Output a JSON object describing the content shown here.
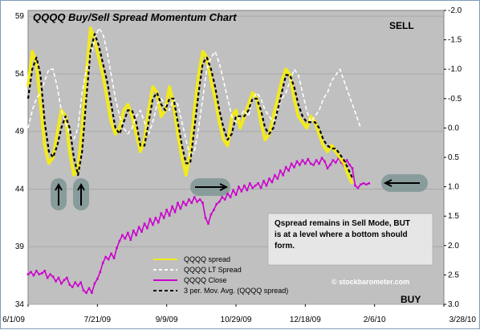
{
  "chart_data": {
    "type": "line",
    "title": "QQQQ Buy/Sell Spread Momentum Chart",
    "x_ticks": [
      "6/1/09",
      "7/21/09",
      "9/9/09",
      "10/29/09",
      "12/18/09",
      "2/6/10",
      "3/28/10"
    ],
    "x_range": [
      "6/1/09",
      "3/28/10"
    ],
    "y_left": {
      "ticks": [
        "59",
        "54",
        "49",
        "44",
        "39",
        "34"
      ],
      "range": [
        34,
        59.5
      ]
    },
    "y_right": {
      "ticks": [
        "-2.0",
        "-1.5",
        "-1.0",
        "-0.5",
        "0.0",
        "0.5",
        "1.0",
        "1.5",
        "2.0",
        "2.5",
        "3.0"
      ],
      "range": [
        -2.0,
        3.0
      ],
      "inverted": true
    },
    "grid": "horizontal",
    "plot_background": "#c0c0c0",
    "mode_labels": {
      "sell": "SELL",
      "buy": "BUY"
    },
    "legend": {
      "placement": "bottom-center",
      "entries": [
        {
          "label": "QQQQ spread",
          "color": "#f2ea1a",
          "style": "solid"
        },
        {
          "label": "QQQQ LT Spread",
          "color": "#ffffff",
          "style": "dashed"
        },
        {
          "label": "QQQQ Close",
          "color": "#cc00cc",
          "style": "solid"
        },
        {
          "label": "3 per. Mov. Avg. (QQQQ spread)",
          "color": "#000000",
          "style": "dashed"
        }
      ]
    },
    "annotations": {
      "note": [
        "Qspread remains in Sell Mode, BUT",
        "is at a level where a bottom should",
        "form."
      ],
      "credit": "© stockbarometer.com"
    },
    "series": [
      {
        "name": "QQQQ Close",
        "axis": "left",
        "color": "#cc00cc",
        "x": [
          0,
          2,
          4,
          6,
          8,
          10,
          12,
          14,
          16,
          18,
          20,
          22,
          24,
          26,
          28,
          30,
          32,
          34,
          36,
          38,
          40,
          42,
          44,
          46,
          48,
          50,
          52,
          54,
          56,
          58,
          60,
          62,
          64,
          66,
          68,
          70,
          72,
          74,
          76,
          78,
          80,
          82,
          84,
          86,
          88,
          90,
          92,
          94,
          96,
          98,
          100,
          102,
          104,
          106,
          108,
          110,
          112,
          114,
          116,
          118,
          120,
          122,
          124,
          126,
          128,
          130,
          132,
          134,
          136,
          138,
          140,
          142,
          144,
          146,
          148,
          150,
          152,
          154,
          156,
          158,
          160,
          162,
          164,
          166,
          168,
          170,
          172,
          174,
          176,
          178,
          180,
          182,
          184,
          186,
          188,
          190,
          192,
          194,
          196,
          198,
          200,
          202,
          204,
          206,
          208,
          210,
          212,
          214,
          216,
          218,
          220,
          222,
          224,
          226,
          228,
          230,
          232,
          234,
          236,
          238,
          240,
          242,
          244,
          246
        ],
        "y": [
          36.6,
          36.8,
          36.5,
          36.9,
          36.6,
          36.7,
          36.9,
          36.3,
          36.6,
          36.4,
          36.0,
          36.3,
          35.8,
          36.1,
          36.3,
          35.7,
          35.5,
          35.9,
          35.6,
          35.9,
          35.2,
          35.0,
          35.4,
          35.0,
          35.8,
          36.2,
          36.8,
          37.6,
          38.1,
          37.9,
          38.4,
          38.0,
          38.9,
          39.5,
          40.0,
          39.7,
          40.2,
          39.6,
          40.4,
          40.0,
          40.7,
          40.3,
          41.0,
          40.6,
          41.4,
          40.9,
          41.5,
          41.1,
          41.9,
          41.5,
          42.2,
          41.7,
          42.5,
          42.0,
          42.8,
          42.3,
          42.9,
          42.6,
          43.1,
          42.8,
          43.3,
          42.9,
          43.1,
          42.8,
          41.5,
          41.0,
          41.8,
          42.2,
          42.7,
          42.9,
          43.3,
          43.1,
          43.6,
          43.3,
          43.9,
          43.5,
          44.2,
          43.8,
          44.3,
          43.9,
          44.5,
          44.1,
          44.3,
          44.5,
          44.1,
          44.7,
          44.3,
          44.9,
          44.6,
          45.2,
          44.9,
          45.6,
          45.2,
          45.9,
          45.6,
          46.2,
          45.9,
          46.4,
          46.1,
          46.5,
          46.2,
          46.6,
          46.2,
          46.1,
          46.5,
          46.2,
          46.7,
          46.4,
          45.8,
          46.1,
          46.5,
          46.3,
          46.7,
          46.3,
          46.0,
          46.5,
          46.1,
          45.8,
          44.3,
          44.1,
          44.4,
          44.5,
          44.4,
          44.5
        ]
      },
      {
        "name": "QQQQ spread",
        "axis": "right",
        "color": "#f2ea1a",
        "x": [
          0,
          3,
          6,
          9,
          12,
          15,
          18,
          21,
          24,
          27,
          30,
          33,
          36,
          39,
          42,
          45,
          48,
          51,
          54,
          57,
          60,
          63,
          66,
          69,
          72,
          75,
          78,
          81,
          84,
          87,
          90,
          93,
          96,
          99,
          102,
          105,
          108,
          111,
          114,
          117,
          120,
          123,
          126,
          129,
          132,
          135,
          138,
          141,
          144,
          147,
          150,
          153,
          156,
          159,
          162,
          165,
          168,
          171,
          174,
          177,
          180,
          183,
          186,
          189,
          192,
          195,
          198,
          201,
          204,
          207,
          210,
          213,
          216,
          219,
          222,
          225,
          228,
          231,
          234,
          237,
          240,
          243
        ],
        "y": [
          -0.7,
          -1.3,
          -1.1,
          -0.4,
          0.3,
          0.6,
          0.5,
          0.1,
          -0.3,
          -0.2,
          0.4,
          0.8,
          0.7,
          0.0,
          -0.9,
          -1.7,
          -1.5,
          -1.2,
          -0.9,
          -0.5,
          -0.1,
          0.1,
          0.0,
          -0.3,
          -0.4,
          -0.2,
          0.1,
          0.4,
          0.2,
          -0.3,
          -0.7,
          -0.6,
          -0.2,
          -0.3,
          -0.7,
          -0.4,
          0.1,
          0.5,
          0.8,
          0.4,
          -0.3,
          -0.9,
          -1.3,
          -1.2,
          -0.8,
          -0.5,
          -0.1,
          0.2,
          0.3,
          -0.2,
          -0.3,
          0.0,
          -0.2,
          -0.4,
          -0.6,
          -0.5,
          -0.1,
          0.2,
          0.1,
          -0.2,
          -0.5,
          -0.8,
          -1.0,
          -0.9,
          -0.5,
          -0.2,
          -0.1,
          0.0,
          -0.2,
          -0.1,
          0.1,
          0.3,
          0.4,
          0.3,
          0.4,
          0.5,
          0.6,
          0.8,
          0.95,
          null,
          null,
          null
        ]
      },
      {
        "name": "QQQQ LT Spread",
        "axis": "right",
        "color": "#ffffff",
        "x": [
          0,
          3,
          6,
          9,
          12,
          15,
          18,
          21,
          24,
          27,
          30,
          33,
          36,
          39,
          42,
          45,
          48,
          51,
          54,
          57,
          60,
          63,
          66,
          69,
          72,
          75,
          78,
          81,
          84,
          87,
          90,
          93,
          96,
          99,
          102,
          105,
          108,
          111,
          114,
          117,
          120,
          123,
          126,
          129,
          132,
          135,
          138,
          141,
          144,
          147,
          150,
          153,
          156,
          159,
          162,
          165,
          168,
          171,
          174,
          177,
          180,
          183,
          186,
          189,
          192,
          195,
          198,
          201,
          204,
          207,
          210,
          213,
          216,
          219,
          222,
          225,
          228,
          231,
          234,
          237,
          240,
          243
        ],
        "y": [
          0.0,
          -0.3,
          -0.5,
          -0.6,
          -0.8,
          -1.0,
          -1.0,
          -0.7,
          -0.3,
          -0.1,
          0.1,
          0.2,
          0.0,
          -0.6,
          -1.0,
          -1.2,
          -1.5,
          -1.7,
          -1.6,
          -1.3,
          -0.9,
          -0.5,
          -0.2,
          0.0,
          0.1,
          0.0,
          -0.2,
          -0.3,
          -0.1,
          0.1,
          -0.1,
          -0.4,
          -0.5,
          -0.4,
          -0.3,
          -0.5,
          -0.4,
          -0.1,
          0.2,
          0.5,
          0.4,
          0.0,
          -0.5,
          -1.0,
          -1.2,
          -1.3,
          -1.1,
          -0.8,
          -0.5,
          -0.2,
          -0.1,
          -0.2,
          -0.3,
          -0.2,
          -0.5,
          -0.6,
          -0.5,
          -0.3,
          -0.2,
          -0.1,
          -0.3,
          -0.5,
          -0.6,
          -0.8,
          -1.0,
          -0.9,
          -0.6,
          -0.3,
          -0.1,
          -0.2,
          -0.3,
          -0.5,
          -0.6,
          -0.8,
          -0.9,
          -1.0,
          -0.8,
          -0.6,
          -0.4,
          -0.2,
          0.0,
          null
        ]
      },
      {
        "name": "3 per. Mov. Avg. (QQQQ spread)",
        "axis": "right",
        "color": "#000000",
        "x": [
          0,
          3,
          6,
          9,
          12,
          15,
          18,
          21,
          24,
          27,
          30,
          33,
          36,
          39,
          42,
          45,
          48,
          51,
          54,
          57,
          60,
          63,
          66,
          69,
          72,
          75,
          78,
          81,
          84,
          87,
          90,
          93,
          96,
          99,
          102,
          105,
          108,
          111,
          114,
          117,
          120,
          123,
          126,
          129,
          132,
          135,
          138,
          141,
          144,
          147,
          150,
          153,
          156,
          159,
          162,
          165,
          168,
          171,
          174,
          177,
          180,
          183,
          186,
          189,
          192,
          195,
          198,
          201,
          204,
          207,
          210,
          213,
          216,
          219,
          222,
          225,
          228,
          231,
          234,
          237,
          240,
          243
        ],
        "y": [
          -0.5,
          -1.0,
          -1.2,
          -0.9,
          -0.1,
          0.4,
          0.5,
          0.3,
          0.0,
          -0.2,
          0.0,
          0.5,
          0.8,
          0.4,
          -0.5,
          -1.3,
          -1.6,
          -1.4,
          -1.1,
          -0.8,
          -0.4,
          0.0,
          0.1,
          -0.1,
          -0.3,
          -0.3,
          -0.1,
          0.3,
          0.3,
          -0.1,
          -0.5,
          -0.6,
          -0.4,
          -0.3,
          -0.5,
          -0.5,
          -0.1,
          0.3,
          0.6,
          0.6,
          0.0,
          -0.6,
          -1.1,
          -1.2,
          -1.0,
          -0.7,
          -0.3,
          0.0,
          0.2,
          0.1,
          -0.2,
          -0.2,
          -0.2,
          -0.3,
          -0.5,
          -0.5,
          -0.3,
          0.0,
          0.1,
          0.0,
          -0.3,
          -0.6,
          -0.9,
          -0.9,
          -0.7,
          -0.4,
          -0.2,
          -0.1,
          -0.1,
          -0.1,
          0.0,
          0.2,
          0.3,
          0.35,
          0.35,
          0.45,
          0.55,
          0.7,
          0.85,
          null,
          null,
          null
        ]
      }
    ]
  }
}
